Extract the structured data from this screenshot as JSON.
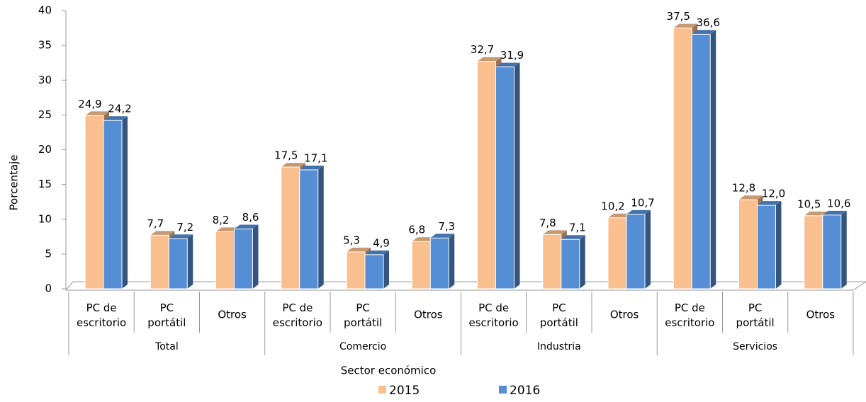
{
  "chart_data": {
    "type": "bar",
    "categories": [
      "PC de escritorio",
      "PC portátil",
      "Otros",
      "PC de escritorio",
      "PC portátil",
      "Otros",
      "PC de escritorio",
      "PC portátil",
      "Otros",
      "PC de escritorio",
      "PC portátil",
      "Otros"
    ],
    "groups": [
      "Total",
      "Comercio",
      "Industria",
      "Servicios"
    ],
    "series": [
      {
        "name": "2015",
        "color": "#f9bf8f",
        "values": [
          24.9,
          7.7,
          8.2,
          17.5,
          5.3,
          6.8,
          32.7,
          7.8,
          10.2,
          37.5,
          12.8,
          10.5
        ],
        "value_labels": [
          "24,9",
          "7,7",
          "8,2",
          "17,5",
          "5,3",
          "6,8",
          "32,7",
          "7,8",
          "10,2",
          "37,5",
          "12,8",
          "10,5"
        ]
      },
      {
        "name": "2016",
        "color": "#558ed5",
        "values": [
          24.2,
          7.2,
          8.6,
          17.1,
          4.9,
          7.3,
          31.9,
          7.1,
          10.7,
          36.6,
          12.0,
          10.6
        ],
        "value_labels": [
          "24,2",
          "7,2",
          "8,6",
          "17,1",
          "4,9",
          "7,3",
          "31,9",
          "7,1",
          "10,7",
          "36,6",
          "12,0",
          "10,6"
        ]
      }
    ],
    "ylim": [
      0,
      40
    ],
    "yticks": [
      0,
      5,
      10,
      15,
      20,
      25,
      30,
      35,
      40
    ],
    "xlabel": "Sector económico",
    "ylabel": "Porcentaje",
    "legend": "bottom"
  }
}
